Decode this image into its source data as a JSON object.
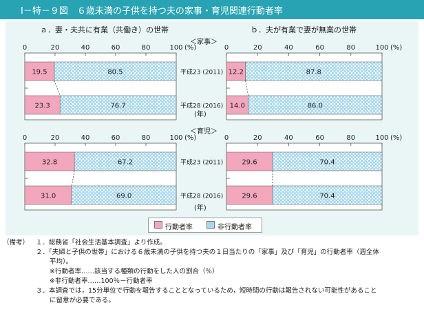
{
  "header": {
    "title": "Ⅰ－特－９図　６歳未満の子供を持つ夫の家事・育児関連行動者率"
  },
  "panels": {
    "left": "ａ．妻・夫共に有業（共働き）の世帯",
    "right": "ｂ．夫が有業で妻が無業の世帯"
  },
  "sections": {
    "housework": "＜家事＞",
    "childcare": "＜育児＞"
  },
  "axis": {
    "ticks": [
      "0",
      "20",
      "40",
      "60",
      "80",
      "100"
    ],
    "unit": "(%)",
    "year_unit": "(年)"
  },
  "categories": [
    "平成23 (2011)",
    "平成28 (2016)"
  ],
  "legend": {
    "active": "行動者率",
    "inactive": "非行動者率"
  },
  "colors": {
    "active": "#f2a7bd",
    "inactive": "#9fd3ea",
    "background": "#eaf6f6",
    "header": "#27a3b4"
  },
  "chart_data": [
    {
      "type": "bar",
      "stacked": true,
      "orientation": "horizontal",
      "title": "ａ．妻・夫共に有業（共働き）の世帯 ＜家事＞",
      "categories": [
        "平成23 (2011)",
        "平成28 (2016)"
      ],
      "series": [
        {
          "name": "行動者率",
          "values": [
            19.5,
            23.3
          ]
        },
        {
          "name": "非行動者率",
          "values": [
            80.5,
            76.7
          ]
        }
      ],
      "xlim": [
        0,
        100
      ],
      "xlabel": "(%)",
      "ylabel": "(年)"
    },
    {
      "type": "bar",
      "stacked": true,
      "orientation": "horizontal",
      "title": "ｂ．夫が有業で妻が無業の世帯 ＜家事＞",
      "categories": [
        "平成23 (2011)",
        "平成28 (2016)"
      ],
      "series": [
        {
          "name": "行動者率",
          "values": [
            12.2,
            14.0
          ]
        },
        {
          "name": "非行動者率",
          "values": [
            87.8,
            86.0
          ]
        }
      ],
      "xlim": [
        0,
        100
      ],
      "xlabel": "(%)"
    },
    {
      "type": "bar",
      "stacked": true,
      "orientation": "horizontal",
      "title": "ａ．妻・夫共に有業（共働き）の世帯 ＜育児＞",
      "categories": [
        "平成23 (2011)",
        "平成28 (2016)"
      ],
      "series": [
        {
          "name": "行動者率",
          "values": [
            32.8,
            31.0
          ]
        },
        {
          "name": "非行動者率",
          "values": [
            67.2,
            69.0
          ]
        }
      ],
      "xlim": [
        0,
        100
      ],
      "xlabel": "(%)",
      "ylabel": "(年)"
    },
    {
      "type": "bar",
      "stacked": true,
      "orientation": "horizontal",
      "title": "ｂ．夫が有業で妻が無業の世帯 ＜育児＞",
      "categories": [
        "平成23 (2011)",
        "平成28 (2016)"
      ],
      "series": [
        {
          "name": "行動者率",
          "values": [
            29.6,
            29.6
          ]
        },
        {
          "name": "非行動者率",
          "values": [
            70.4,
            70.4
          ]
        }
      ],
      "xlim": [
        0,
        100
      ],
      "xlabel": "(%)"
    }
  ],
  "notes": {
    "label": "（備考）",
    "n1": "１．総務省「社会生活基本調査」より作成。",
    "n2a": "２．「夫婦と子供の世帯」における６歳未満の子供を持つ夫の１日当たりの「家事」及び「育児」の行動者率（週全体",
    "n2b": "平均）。",
    "n2c": "※行動者率……該当する種類の行動をした人の割合（％）",
    "n2d": "※非行動者率……100％－行動者率",
    "n3a": "３．本調査では，15分単位で行動を報告することとなっているため，短時間の行動は報告されない可能性があること",
    "n3b": "に留意が必要である。"
  }
}
